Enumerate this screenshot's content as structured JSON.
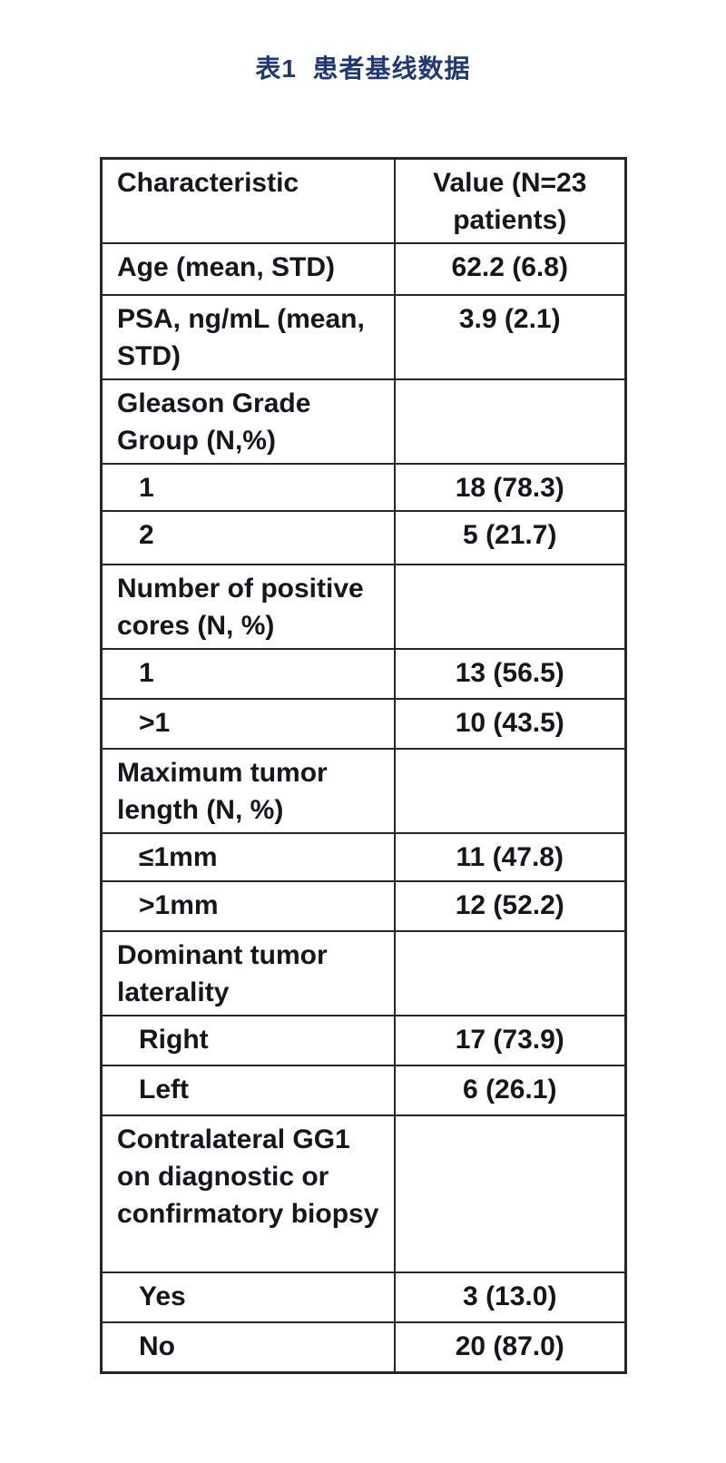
{
  "title": {
    "text": "表1  患者基线数据",
    "color": "#203876"
  },
  "table": {
    "header": {
      "col1": "Characteristic",
      "col2": "Value (N=23 patients)"
    },
    "rows": [
      {
        "label": "Age (mean, STD)",
        "value": "62.2 (6.8)",
        "indent": false
      },
      {
        "label": "PSA, ng/mL (mean, STD)",
        "value": "3.9 (2.1)",
        "indent": false
      },
      {
        "label": "Gleason Grade Group (N,%)",
        "value": "",
        "indent": false
      },
      {
        "label": "1",
        "value": "18 (78.3)",
        "indent": true
      },
      {
        "label": "2",
        "value": "5 (21.7)",
        "indent": true
      },
      {
        "label": "Number of positive cores (N, %)",
        "value": "",
        "indent": false
      },
      {
        "label": "1",
        "value": "13 (56.5)",
        "indent": true
      },
      {
        "label": ">1",
        "value": "10 (43.5)",
        "indent": true
      },
      {
        "label": "Maximum tumor length (N, %)",
        "value": "",
        "indent": false
      },
      {
        "label": "≤1mm",
        "value": "11 (47.8)",
        "indent": true
      },
      {
        "label": ">1mm",
        "value": "12 (52.2)",
        "indent": true
      },
      {
        "label": "Dominant tumor laterality",
        "value": "",
        "indent": false
      },
      {
        "label": "Right",
        "value": "17 (73.9)",
        "indent": true
      },
      {
        "label": "Left",
        "value": "6 (26.1)",
        "indent": true
      },
      {
        "label": "Contralateral GG1 on diagnostic or confirmatory biopsy",
        "value": "",
        "indent": false
      },
      {
        "label": "Yes",
        "value": "3 (13.0)",
        "indent": true
      },
      {
        "label": "No",
        "value": "20 (87.0)",
        "indent": true
      }
    ]
  }
}
